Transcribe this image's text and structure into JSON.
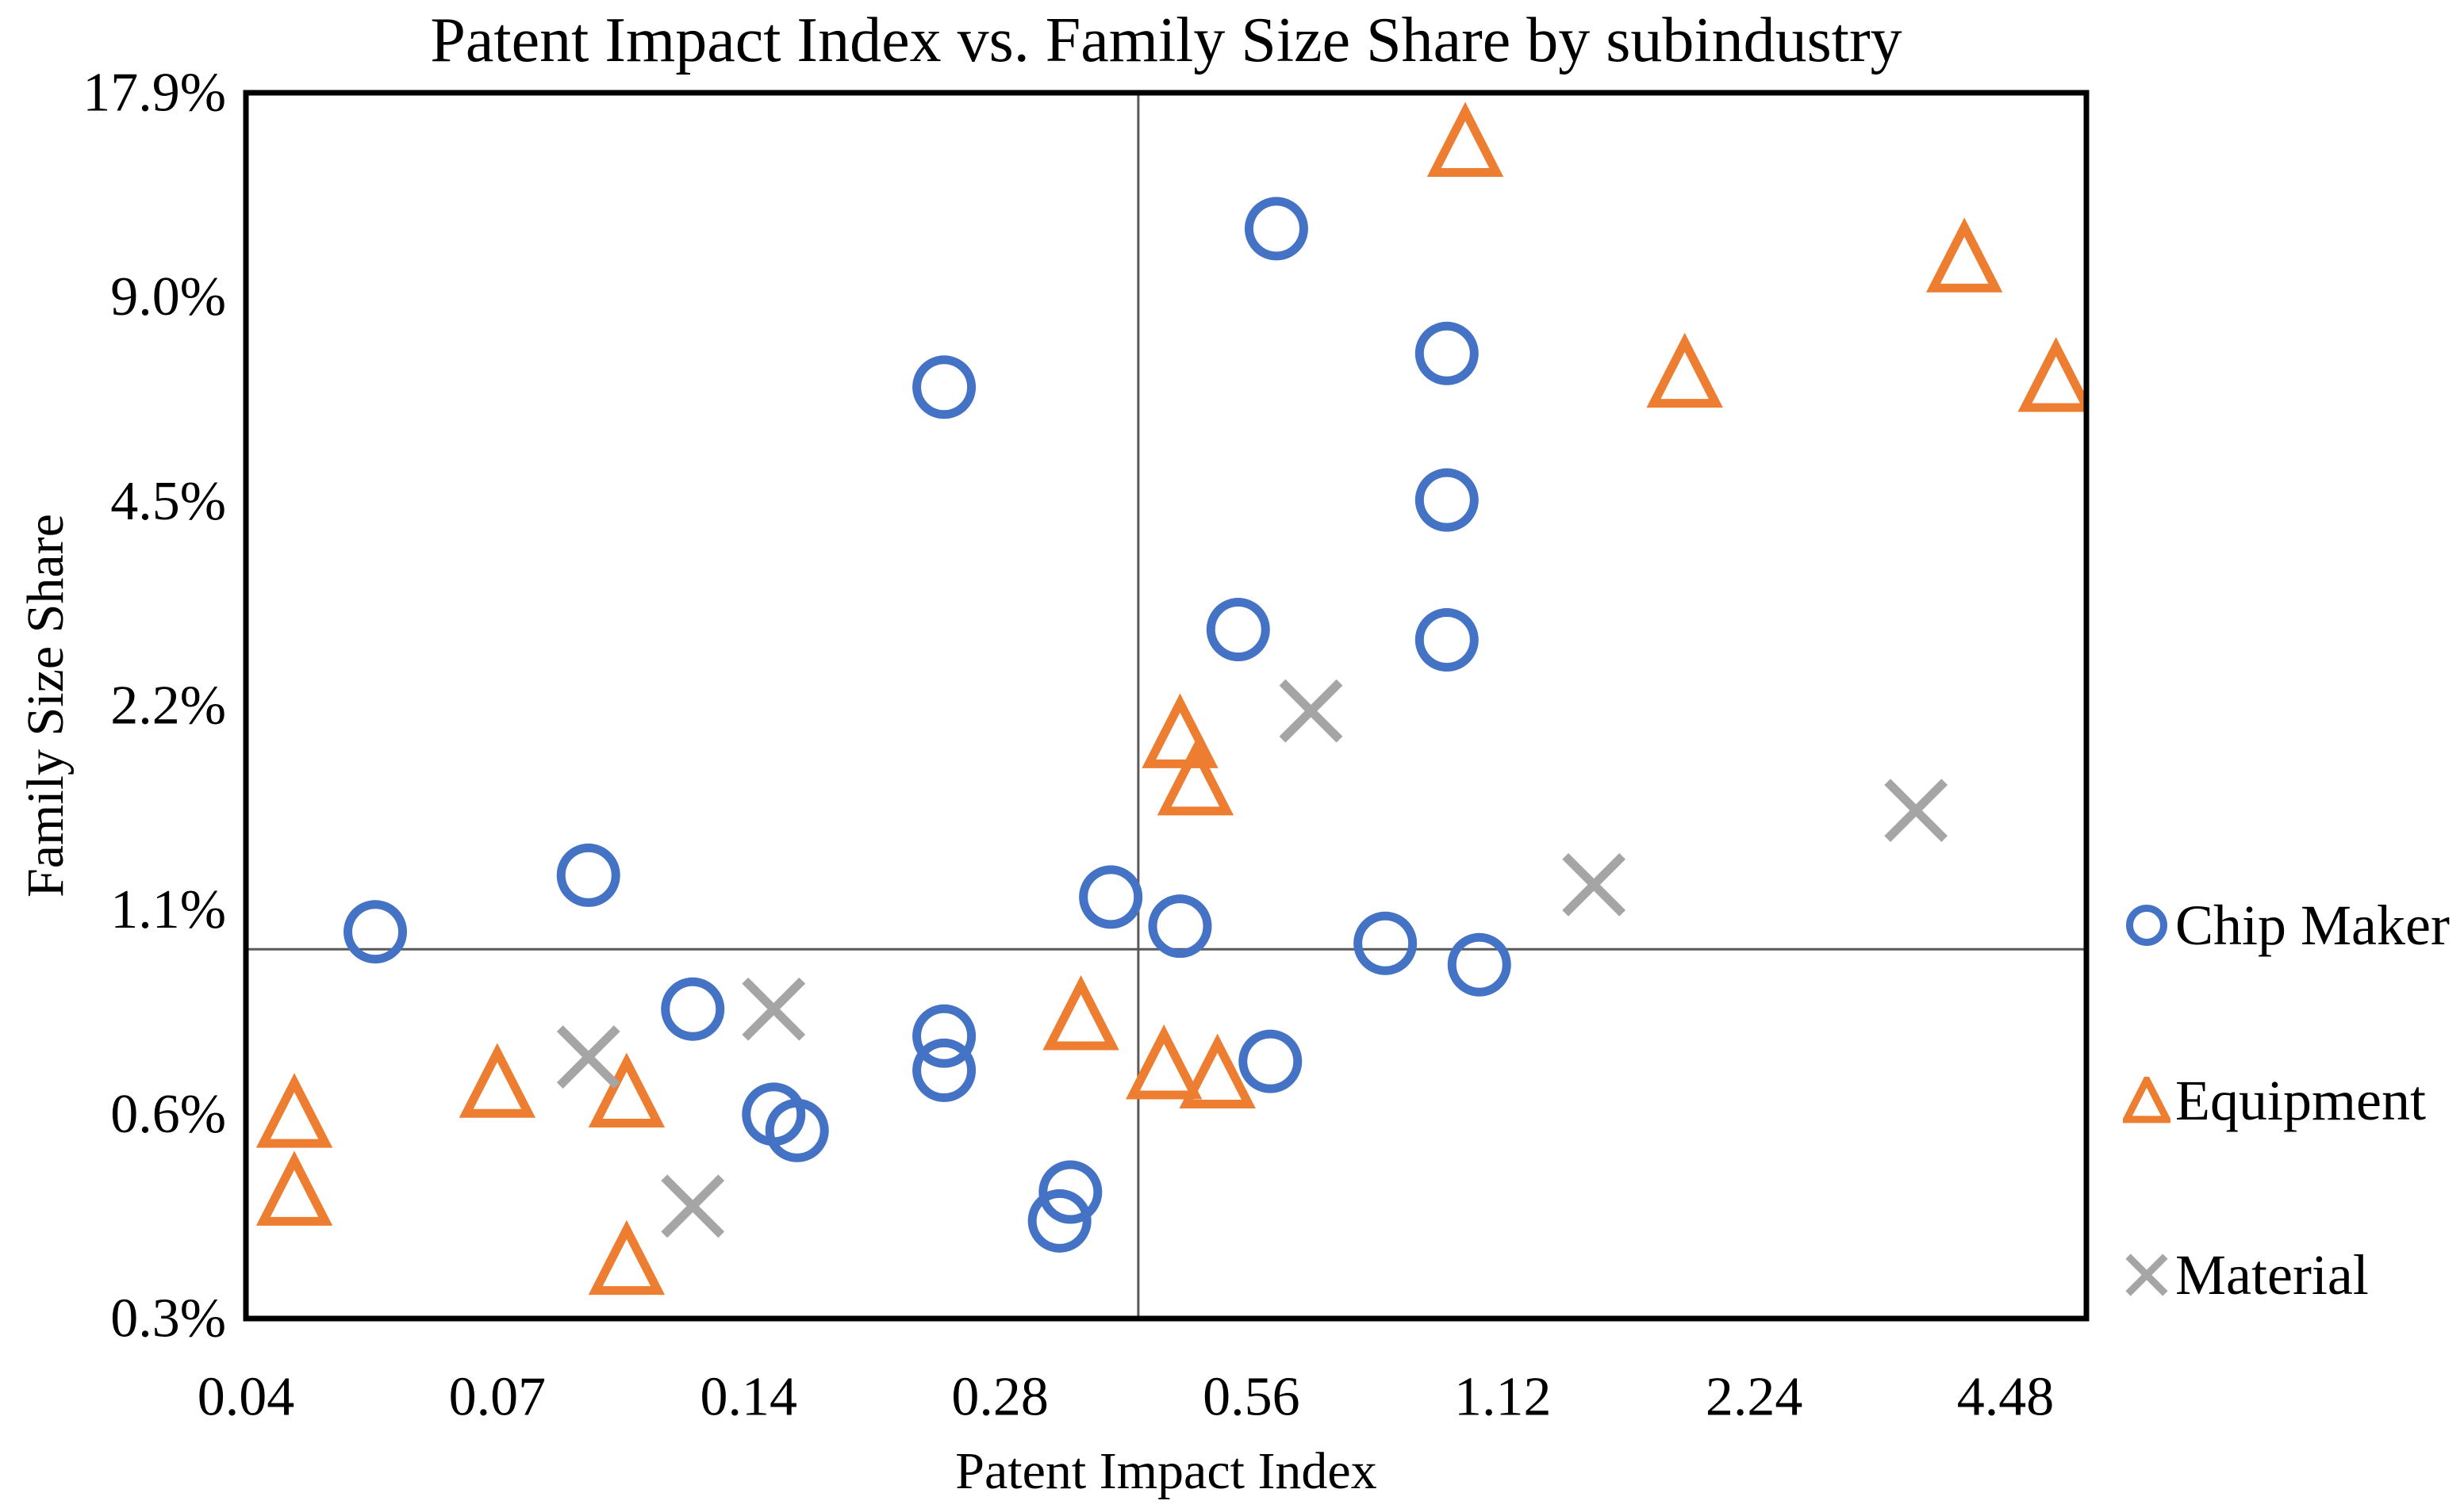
{
  "chart_data": {
    "type": "scatter",
    "title": "Patent Impact Index vs. Family Size Share by subindustry",
    "xlabel": "Patent Impact Index",
    "ylabel": "Family Size Share",
    "x_scale": "log2",
    "y_scale": "log2",
    "x_range": [
      0.035,
      5.6
    ],
    "y_range_pct": [
      0.28,
      17.92
    ],
    "grid": false,
    "legend_position": "right",
    "frame_color": "#000000",
    "reference_lines": {
      "x": 0.41,
      "y_pct": 0.98,
      "color": "#595959"
    },
    "x_ticks": [
      {
        "value": 0.035,
        "label": "0.04"
      },
      {
        "value": 0.07,
        "label": "0.07"
      },
      {
        "value": 0.14,
        "label": "0.14"
      },
      {
        "value": 0.28,
        "label": "0.28"
      },
      {
        "value": 0.56,
        "label": "0.56"
      },
      {
        "value": 1.12,
        "label": "1.12"
      },
      {
        "value": 2.24,
        "label": "2.24"
      },
      {
        "value": 4.48,
        "label": "4.48"
      }
    ],
    "y_ticks": [
      {
        "value": 0.28,
        "label": "0.3%"
      },
      {
        "value": 0.56,
        "label": "0.6%"
      },
      {
        "value": 1.12,
        "label": "1.1%"
      },
      {
        "value": 2.24,
        "label": "2.2%"
      },
      {
        "value": 4.48,
        "label": "4.5%"
      },
      {
        "value": 8.96,
        "label": "9.0%"
      },
      {
        "value": 17.92,
        "label": "17.9%"
      }
    ],
    "series": [
      {
        "name": "Chip Maker",
        "marker": "circle",
        "color": "#4472C4",
        "points": [
          [
            0.24,
            6.6
          ],
          [
            0.6,
            11.3
          ],
          [
            0.96,
            7.4
          ],
          [
            0.96,
            4.5
          ],
          [
            0.96,
            2.8
          ],
          [
            0.54,
            2.9
          ],
          [
            0.05,
            1.04
          ],
          [
            0.09,
            1.26
          ],
          [
            0.38,
            1.17
          ],
          [
            0.46,
            1.06
          ],
          [
            0.81,
            1.0
          ],
          [
            1.05,
            0.93
          ],
          [
            0.12,
            0.8
          ],
          [
            0.24,
            0.73
          ],
          [
            0.24,
            0.65
          ],
          [
            0.59,
            0.67
          ],
          [
            0.15,
            0.56
          ],
          [
            0.16,
            0.53
          ],
          [
            0.34,
            0.43
          ],
          [
            0.33,
            0.39
          ]
        ]
      },
      {
        "name": "Equipment",
        "marker": "triangle",
        "color": "#ED7D31",
        "points": [
          [
            1.01,
            15.1
          ],
          [
            4.0,
            10.2
          ],
          [
            1.85,
            6.9
          ],
          [
            5.15,
            6.8
          ],
          [
            0.46,
            2.03
          ],
          [
            0.48,
            1.73
          ],
          [
            0.35,
            0.78
          ],
          [
            0.44,
            0.66
          ],
          [
            0.51,
            0.64
          ],
          [
            0.07,
            0.62
          ],
          [
            0.1,
            0.6
          ],
          [
            0.04,
            0.56
          ],
          [
            0.04,
            0.43
          ],
          [
            0.1,
            0.34
          ]
        ]
      },
      {
        "name": "Material",
        "marker": "x",
        "color": "#A5A5A5",
        "points": [
          [
            0.66,
            2.2
          ],
          [
            1.44,
            1.22
          ],
          [
            3.5,
            1.57
          ],
          [
            0.15,
            0.8
          ],
          [
            0.09,
            0.68
          ],
          [
            0.12,
            0.41
          ]
        ]
      }
    ]
  }
}
